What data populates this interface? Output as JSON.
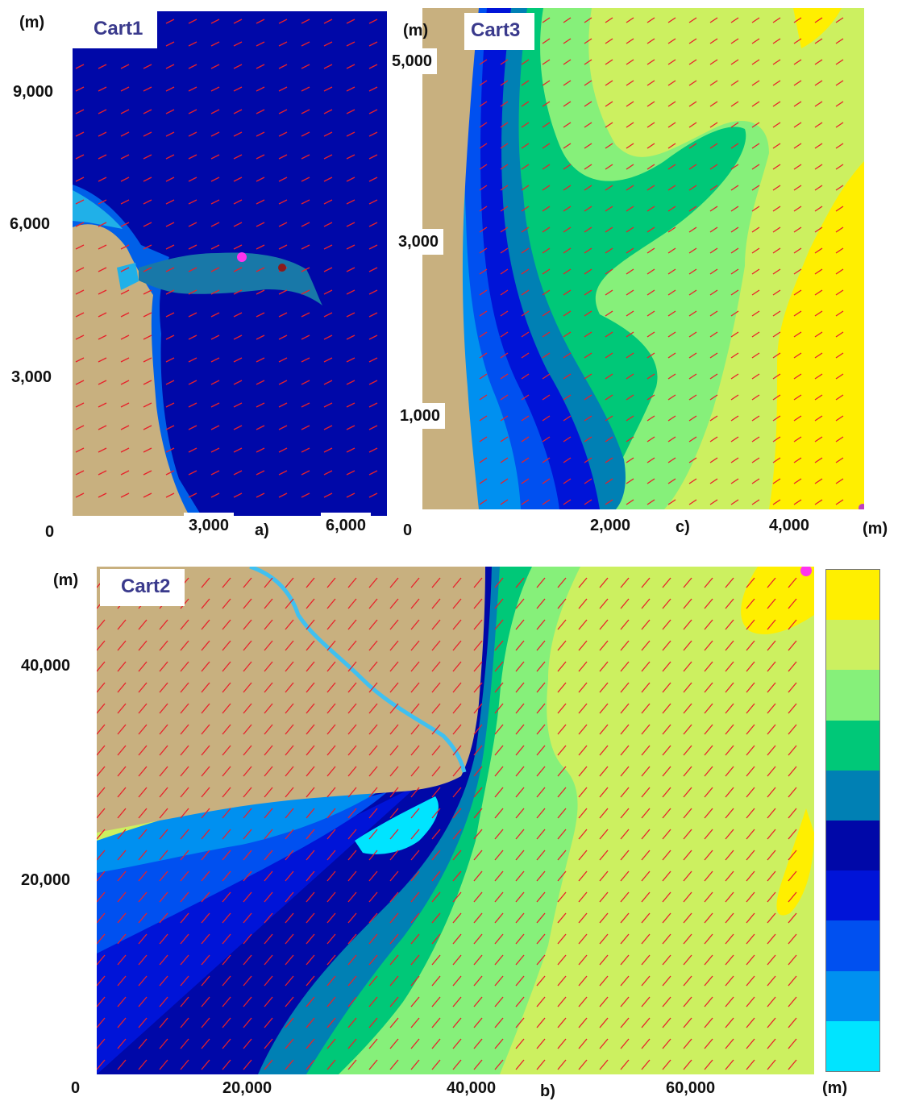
{
  "unit_label": "(m)",
  "panels": {
    "a": {
      "title": "Cart1",
      "letter": "a)",
      "y_ticks": [
        "9,000",
        "6,000",
        "3,000"
      ],
      "x_ticks": [
        "0",
        "3,000",
        "6,000"
      ]
    },
    "c": {
      "title": "Cart3",
      "letter": "c)",
      "y_ticks": [
        "5,000",
        "3,000",
        "1,000"
      ],
      "x_ticks": [
        "0",
        "2,000",
        "4,000"
      ]
    },
    "b": {
      "title": "Cart2",
      "letter": "b)",
      "y_ticks": [
        "40,000",
        "20,000"
      ],
      "x_ticks": [
        "0",
        "20,000",
        "40,000",
        "60,000"
      ]
    }
  },
  "colors": {
    "land": "#c8b07f",
    "arrow": "#e8202a",
    "marker": "#ff33ee",
    "marker_dark": "#8b1a1a"
  },
  "legend_colors": [
    "#ffef00",
    "#ccf060",
    "#86f07a",
    "#00c878",
    "#0080b4",
    "#0008a8",
    "#0014d8",
    "#0050f0",
    "#0090f0",
    "#00e4ff"
  ]
}
